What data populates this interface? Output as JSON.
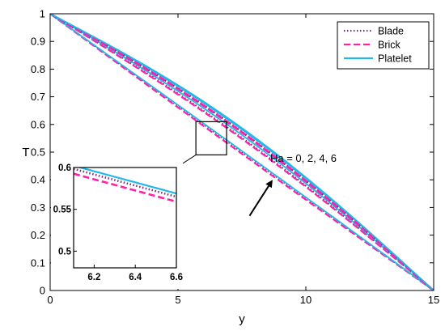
{
  "chart_data": {
    "type": "line",
    "xlabel": "y",
    "ylabel": "T",
    "xlim": [
      0,
      15
    ],
    "ylim": [
      0,
      1
    ],
    "xticks": [
      0,
      5,
      10,
      15
    ],
    "yticks": [
      0,
      0.1,
      0.2,
      0.3,
      0.4,
      0.5,
      0.6,
      0.7,
      0.8,
      0.9,
      1
    ],
    "grid": false,
    "legend_position": "top-right",
    "legend": [
      {
        "label": "Blade",
        "color": "#7B2D8E",
        "style": "dotted"
      },
      {
        "label": "Brick",
        "color": "#FF1FA8",
        "style": "dashed"
      },
      {
        "label": "Platelet",
        "color": "#22B8E8",
        "style": "solid"
      }
    ],
    "annotation": {
      "text": "Ha = 0, 2, 4, 6",
      "arrow": "increasing Ha",
      "arrow_from": [
        7.8,
        0.27
      ],
      "arrow_to": [
        8.7,
        0.4
      ]
    },
    "series": [
      {
        "name": "Blade",
        "style": "dotted",
        "color": "#7B2D8E",
        "x": [
          0,
          15
        ],
        "y": [
          1,
          0
        ],
        "offset": 0.0
      },
      {
        "name": "Brick",
        "style": "dashed",
        "color": "#FF1FA8",
        "x": [
          0,
          15
        ],
        "y": [
          1,
          0
        ],
        "offset": -0.006
      },
      {
        "name": "Platelet",
        "style": "solid",
        "color": "#22B8E8",
        "x": [
          0,
          15
        ],
        "y": [
          1,
          0
        ],
        "offset": 0.004
      },
      {
        "name": "Blade",
        "style": "dotted",
        "color": "#7B2D8E",
        "x": [
          0,
          15
        ],
        "y": [
          1,
          0
        ],
        "offset": 0.052
      },
      {
        "name": "Brick",
        "style": "dashed",
        "color": "#FF1FA8",
        "x": [
          0,
          15
        ],
        "y": [
          1,
          0
        ],
        "offset": 0.048
      },
      {
        "name": "Platelet",
        "style": "solid",
        "color": "#22B8E8",
        "x": [
          0,
          15
        ],
        "y": [
          1,
          0
        ],
        "offset": 0.062
      },
      {
        "name": "Blade",
        "style": "dotted",
        "color": "#7B2D8E",
        "x": [
          0,
          15
        ],
        "y": [
          1,
          0
        ],
        "offset": 0.072
      },
      {
        "name": "Brick",
        "style": "dashed",
        "color": "#FF1FA8",
        "x": [
          0,
          15
        ],
        "y": [
          1,
          0
        ],
        "offset": 0.07
      },
      {
        "name": "Platelet",
        "style": "solid",
        "color": "#22B8E8",
        "x": [
          0,
          15
        ],
        "y": [
          1,
          0
        ],
        "offset": 0.082
      },
      {
        "name": "Blade",
        "style": "dotted",
        "color": "#7B2D8E",
        "x": [
          0,
          15
        ],
        "y": [
          1,
          0
        ],
        "offset": 0.074
      },
      {
        "name": "Brick",
        "style": "dashed",
        "color": "#FF1FA8",
        "x": [
          0,
          15
        ],
        "y": [
          1,
          0
        ],
        "offset": 0.073
      },
      {
        "name": "Platelet",
        "style": "solid",
        "color": "#22B8E8",
        "x": [
          0,
          15
        ],
        "y": [
          1,
          0
        ],
        "offset": 0.087
      }
    ],
    "inset": {
      "xlim": [
        6.1,
        6.6
      ],
      "ylim": [
        0.48,
        0.6
      ],
      "xticks": [
        6.2,
        6.4,
        6.6
      ],
      "yticks": [
        0.5,
        0.55,
        0.6
      ],
      "zoom_box": {
        "x": [
          5.7,
          6.9
        ],
        "y": [
          0.49,
          0.61
        ]
      }
    }
  }
}
